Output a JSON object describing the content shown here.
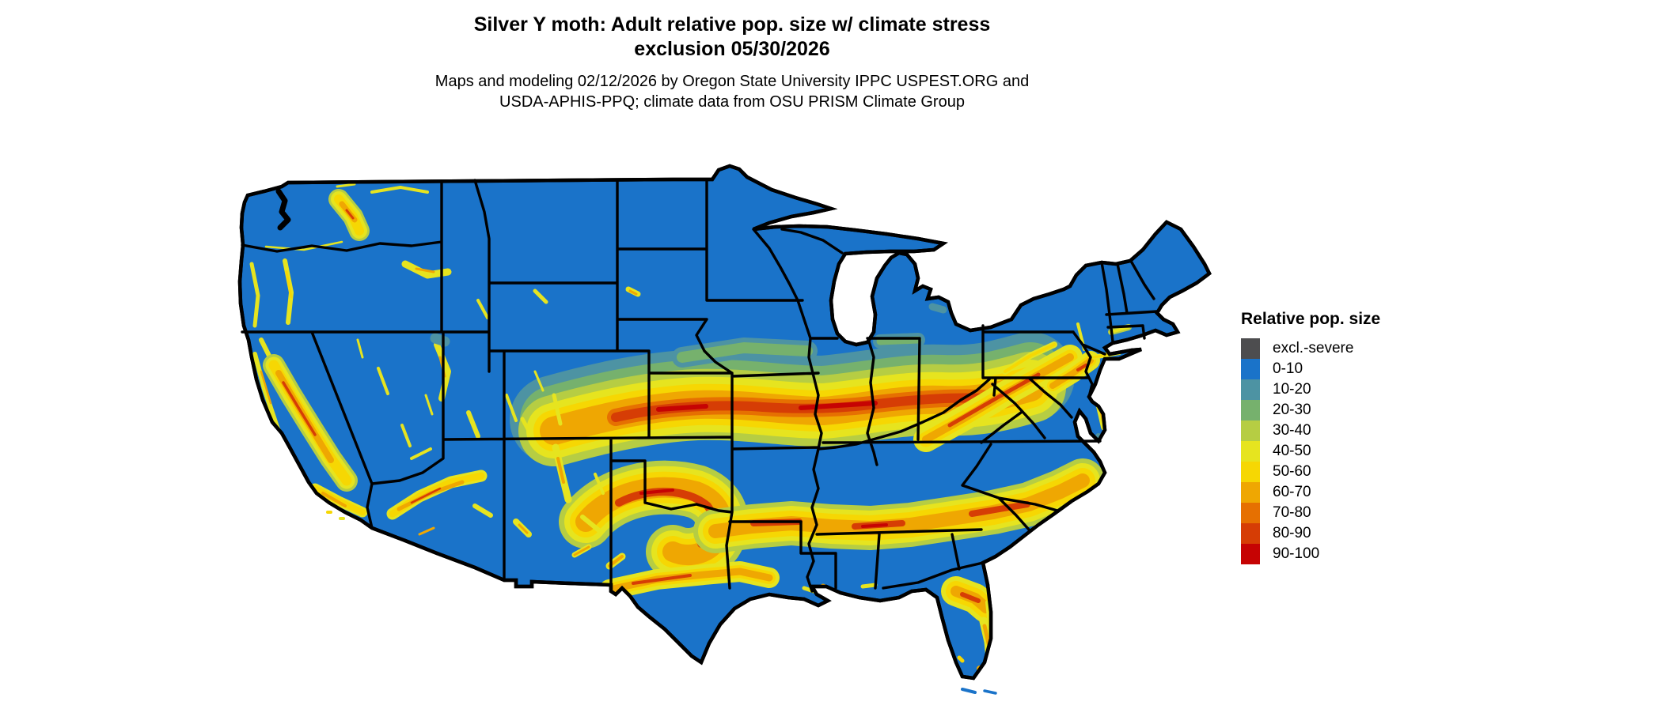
{
  "title": {
    "line1": "Silver Y moth: Adult relative pop. size w/ climate stress",
    "line2": "exclusion 05/30/2026"
  },
  "subtitle": {
    "line1": "Maps and modeling 02/12/2026 by Oregon State University IPPC USPEST.ORG and",
    "line2": "USDA-APHIS-PPQ; climate data from OSU PRISM Climate Group"
  },
  "legend": {
    "title": "Relative pop. size",
    "items": [
      {
        "label": "excl.-severe",
        "color": "#4d4d4f"
      },
      {
        "label": "0-10",
        "color": "#1a73c9"
      },
      {
        "label": "10-20",
        "color": "#4d93a3"
      },
      {
        "label": "20-30",
        "color": "#76b16d"
      },
      {
        "label": "30-40",
        "color": "#b6cd43"
      },
      {
        "label": "40-50",
        "color": "#e6e41f"
      },
      {
        "label": "50-60",
        "color": "#f6d703"
      },
      {
        "label": "60-70",
        "color": "#efa702"
      },
      {
        "label": "70-80",
        "color": "#e67001"
      },
      {
        "label": "80-90",
        "color": "#d63d05"
      },
      {
        "label": "90-100",
        "color": "#c60303"
      }
    ]
  },
  "map": {
    "region": "Continental United States",
    "base_value_class": "0-10",
    "base_color": "#1a73c9",
    "state_border_color": "#000000",
    "water_background_color": "#ffffff",
    "hotspot_summary": [
      "High-value (60-100) east-west band across Kansas, Missouri, Illinois, Indiana, Ohio into Pennsylvania",
      "Southern band across central Texas, Oklahoma Red River valley, Mississippi, Alabama, Georgia, South Carolina piedmont",
      "Appalachian ridge streaks through West Virginia and Virginia",
      "Mountain-associated patches: Washington Cascades, California Sierra Nevada and coast ranges, Arizona Mogollon Rim, New Mexico ranges, Utah",
      "North Florida patch with yellow central ridge and orange southern tip",
      "Mid-Atlantic orange patch over southeastern Pennsylvania, New Jersey, Delmarva"
    ]
  }
}
